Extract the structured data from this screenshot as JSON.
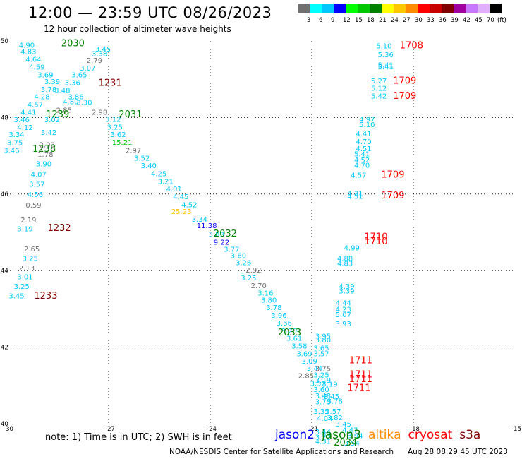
{
  "title": "12:00 — 23:59 UTC 08/26/2023",
  "subtitle": "12 hour collection of altimeter wave heights",
  "scale": {
    "labels": [
      "3",
      "6",
      "9",
      "12",
      "15",
      "18",
      "21",
      "24",
      "27",
      "30",
      "33",
      "36",
      "39",
      "42",
      "45",
      "70",
      "(ft)"
    ],
    "colors": [
      "#707070",
      "#00ffff",
      "#00c8ff",
      "#0000ff",
      "#00ff00",
      "#00c800",
      "#008000",
      "#ffff00",
      "#ffc800",
      "#ff8c00",
      "#ff0000",
      "#c80000",
      "#800000",
      "#a000a0",
      "#c878ff",
      "#e0b0ff",
      "#000000"
    ]
  },
  "note": "note:  1) Time is in UTC;  2) SWH is in feet",
  "legend": [
    {
      "name": "jason2",
      "color": "#0000ff"
    },
    {
      "name": "jason3",
      "color": "#008000"
    },
    {
      "name": "altika",
      "color": "#ff8c00"
    },
    {
      "name": "cryosat",
      "color": "#ff0000"
    },
    {
      "name": "s3a",
      "color": "#800000"
    }
  ],
  "footer_left": "NOAA/NESDIS Center for Satellite Applications and Research",
  "footer_right": "Aug 28 08:29:45 UTC 2023",
  "chart_data": {
    "type": "scatter",
    "title": "12:00 — 23:59 UTC 08/26/2023",
    "xlim": [
      -30,
      -15
    ],
    "ylim": [
      40,
      50
    ],
    "x_ticks": [
      -30,
      -27,
      -24,
      -21,
      -18,
      -15
    ],
    "y_ticks": [
      40,
      42,
      44,
      46,
      48,
      50
    ],
    "grid": true,
    "values": [
      {
        "x": -29.65,
        "y": 49.9,
        "v": "4.90",
        "c": "#00c8ff"
      },
      {
        "x": -29.6,
        "y": 49.73,
        "v": "4.83",
        "c": "#00c8ff"
      },
      {
        "x": -29.45,
        "y": 49.53,
        "v": "4.64",
        "c": "#00c8ff"
      },
      {
        "x": -29.35,
        "y": 49.33,
        "v": "4.59",
        "c": "#00c8ff"
      },
      {
        "x": -29.1,
        "y": 49.12,
        "v": "3.69",
        "c": "#00c8ff"
      },
      {
        "x": -28.9,
        "y": 48.95,
        "v": "3.39",
        "c": "#00c8ff"
      },
      {
        "x": -29.0,
        "y": 48.75,
        "v": "3.78",
        "c": "#00c8ff"
      },
      {
        "x": -29.2,
        "y": 48.55,
        "v": "4.28",
        "c": "#00c8ff"
      },
      {
        "x": -29.4,
        "y": 48.35,
        "v": "4.57",
        "c": "#00c8ff"
      },
      {
        "x": -29.6,
        "y": 48.15,
        "v": "4.41",
        "c": "#00c8ff"
      },
      {
        "x": -29.8,
        "y": 47.95,
        "v": "3.46",
        "c": "#00c8ff"
      },
      {
        "x": -29.7,
        "y": 47.75,
        "v": "4.12",
        "c": "#00c8ff"
      },
      {
        "x": -29.95,
        "y": 47.56,
        "v": "3.34",
        "c": "#00c8ff"
      },
      {
        "x": -30.0,
        "y": 47.35,
        "v": "3.75",
        "c": "#00c8ff"
      },
      {
        "x": -30.1,
        "y": 47.15,
        "v": "3.46",
        "c": "#00c8ff"
      },
      {
        "x": -27.4,
        "y": 49.8,
        "v": "3.45",
        "c": "#00c8ff"
      },
      {
        "x": -27.5,
        "y": 49.68,
        "v": "3.38",
        "c": "#00c8ff"
      },
      {
        "x": -27.65,
        "y": 49.5,
        "v": "2.79",
        "c": "#707070"
      },
      {
        "x": -27.85,
        "y": 49.3,
        "v": "3.07",
        "c": "#00c8ff"
      },
      {
        "x": -28.1,
        "y": 49.12,
        "v": "3.65",
        "c": "#00c8ff"
      },
      {
        "x": -28.3,
        "y": 48.92,
        "v": "3.36",
        "c": "#00c8ff"
      },
      {
        "x": -28.6,
        "y": 48.72,
        "v": "3.48",
        "c": "#00c8ff"
      },
      {
        "x": -28.2,
        "y": 48.55,
        "v": "3.86",
        "c": "#00c8ff"
      },
      {
        "x": -27.95,
        "y": 48.4,
        "v": "3.30",
        "c": "#00c8ff"
      },
      {
        "x": -28.35,
        "y": 48.42,
        "v": "4.80",
        "c": "#00c8ff"
      },
      {
        "x": -28.55,
        "y": 48.2,
        "v": "2.85",
        "c": "#707070"
      },
      {
        "x": -27.5,
        "y": 48.15,
        "v": "2.98",
        "c": "#707070"
      },
      {
        "x": -28.9,
        "y": 47.95,
        "v": "3.02",
        "c": "#00c8ff"
      },
      {
        "x": -29.0,
        "y": 47.62,
        "v": "3.42",
        "c": "#00c8ff"
      },
      {
        "x": -29.05,
        "y": 47.3,
        "v": "2.03",
        "c": "#707070"
      },
      {
        "x": -29.1,
        "y": 47.05,
        "v": "1.78",
        "c": "#707070"
      },
      {
        "x": -29.15,
        "y": 46.8,
        "v": "3.90",
        "c": "#00c8ff"
      },
      {
        "x": -29.3,
        "y": 46.52,
        "v": "4.07",
        "c": "#00c8ff"
      },
      {
        "x": -29.35,
        "y": 46.26,
        "v": "3.57",
        "c": "#00c8ff"
      },
      {
        "x": -29.4,
        "y": 46.0,
        "v": "4.56",
        "c": "#00c8ff"
      },
      {
        "x": -29.45,
        "y": 45.72,
        "v": "0.59",
        "c": "#707070"
      },
      {
        "x": -29.6,
        "y": 45.33,
        "v": "2.19",
        "c": "#707070"
      },
      {
        "x": -29.7,
        "y": 45.1,
        "v": "3.19",
        "c": "#00c8ff"
      },
      {
        "x": -29.5,
        "y": 44.58,
        "v": "2.65",
        "c": "#707070"
      },
      {
        "x": -29.55,
        "y": 44.33,
        "v": "3.25",
        "c": "#00c8ff"
      },
      {
        "x": -29.65,
        "y": 44.08,
        "v": "2.13",
        "c": "#707070"
      },
      {
        "x": -29.7,
        "y": 43.85,
        "v": "3.01",
        "c": "#00c8ff"
      },
      {
        "x": -29.8,
        "y": 43.6,
        "v": "3.25",
        "c": "#00c8ff"
      },
      {
        "x": -29.95,
        "y": 43.35,
        "v": "3.45",
        "c": "#00c8ff"
      },
      {
        "x": -27.1,
        "y": 47.96,
        "v": "3.12",
        "c": "#00c8ff"
      },
      {
        "x": -27.05,
        "y": 47.76,
        "v": "3.25",
        "c": "#00c8ff"
      },
      {
        "x": -26.95,
        "y": 47.56,
        "v": "3.62",
        "c": "#00c8ff"
      },
      {
        "x": -26.9,
        "y": 47.36,
        "v": "15.21",
        "c": "#00c800"
      },
      {
        "x": -26.5,
        "y": 47.15,
        "v": "2.97",
        "c": "#707070"
      },
      {
        "x": -26.25,
        "y": 46.95,
        "v": "3.52",
        "c": "#00c8ff"
      },
      {
        "x": -26.05,
        "y": 46.75,
        "v": "3.40",
        "c": "#00c8ff"
      },
      {
        "x": -25.75,
        "y": 46.54,
        "v": "4.25",
        "c": "#00c8ff"
      },
      {
        "x": -25.55,
        "y": 46.34,
        "v": "3.21",
        "c": "#00c8ff"
      },
      {
        "x": -25.3,
        "y": 46.14,
        "v": "4.01",
        "c": "#00c8ff"
      },
      {
        "x": -25.1,
        "y": 45.94,
        "v": "4.45",
        "c": "#00c8ff"
      },
      {
        "x": -24.85,
        "y": 45.73,
        "v": "4.52",
        "c": "#00c8ff"
      },
      {
        "x": -25.15,
        "y": 45.55,
        "v": "25.23",
        "c": "#ffc800"
      },
      {
        "x": -24.55,
        "y": 45.35,
        "v": "3.34",
        "c": "#00c8ff"
      },
      {
        "x": -24.4,
        "y": 45.18,
        "v": "11.38",
        "c": "#0000ff"
      },
      {
        "x": -24.05,
        "y": 44.95,
        "v": "3.83",
        "c": "#00c8ff"
      },
      {
        "x": -23.9,
        "y": 44.75,
        "v": "9.22",
        "c": "#0000ff"
      },
      {
        "x": -23.6,
        "y": 44.57,
        "v": "3.77",
        "c": "#00c8ff"
      },
      {
        "x": -23.4,
        "y": 44.4,
        "v": "3.60",
        "c": "#00c8ff"
      },
      {
        "x": -23.25,
        "y": 44.22,
        "v": "3.26",
        "c": "#00c8ff"
      },
      {
        "x": -22.95,
        "y": 44.02,
        "v": "2.92",
        "c": "#707070"
      },
      {
        "x": -23.1,
        "y": 43.82,
        "v": "3.25",
        "c": "#00c8ff"
      },
      {
        "x": -22.8,
        "y": 43.62,
        "v": "2.70",
        "c": "#707070"
      },
      {
        "x": -22.6,
        "y": 43.42,
        "v": "3.16",
        "c": "#00c8ff"
      },
      {
        "x": -22.5,
        "y": 43.24,
        "v": "3.80",
        "c": "#00c8ff"
      },
      {
        "x": -22.35,
        "y": 43.04,
        "v": "3.78",
        "c": "#00c8ff"
      },
      {
        "x": -22.2,
        "y": 42.84,
        "v": "3.96",
        "c": "#00c8ff"
      },
      {
        "x": -22.05,
        "y": 42.64,
        "v": "3.66",
        "c": "#00c8ff"
      },
      {
        "x": -21.9,
        "y": 42.44,
        "v": "3.20",
        "c": "#00c8ff"
      },
      {
        "x": -21.75,
        "y": 42.24,
        "v": "3.61",
        "c": "#00c8ff"
      },
      {
        "x": -21.6,
        "y": 42.04,
        "v": "3.58",
        "c": "#00c8ff"
      },
      {
        "x": -21.45,
        "y": 41.84,
        "v": "3.69",
        "c": "#00c8ff"
      },
      {
        "x": -21.3,
        "y": 41.64,
        "v": "3.09",
        "c": "#00c8ff"
      },
      {
        "x": -21.15,
        "y": 41.46,
        "v": "3.44",
        "c": "#00c8ff"
      },
      {
        "x": -21.4,
        "y": 41.26,
        "v": "2.85",
        "c": "#707070"
      },
      {
        "x": -21.05,
        "y": 41.06,
        "v": "3.52",
        "c": "#00c8ff"
      },
      {
        "x": -20.95,
        "y": 40.9,
        "v": "3.60",
        "c": "#00c8ff"
      },
      {
        "x": -20.7,
        "y": 41.04,
        "v": "3.19",
        "c": "#00c8ff"
      },
      {
        "x": -20.9,
        "y": 40.74,
        "v": "3.48",
        "c": "#00c8ff"
      },
      {
        "x": -20.65,
        "y": 40.72,
        "v": "3.45",
        "c": "#00c8ff"
      },
      {
        "x": -20.9,
        "y": 40.58,
        "v": "3.75",
        "c": "#00c8ff"
      },
      {
        "x": -20.55,
        "y": 40.6,
        "v": "3.78",
        "c": "#00c8ff"
      },
      {
        "x": -20.95,
        "y": 40.33,
        "v": "3.35",
        "c": "#00c8ff"
      },
      {
        "x": -20.6,
        "y": 40.33,
        "v": "3.57",
        "c": "#00c8ff"
      },
      {
        "x": -20.85,
        "y": 40.15,
        "v": "4.04",
        "c": "#00c8ff"
      },
      {
        "x": -20.55,
        "y": 40.17,
        "v": "3.82",
        "c": "#00c8ff"
      },
      {
        "x": -20.3,
        "y": 40.0,
        "v": "3.45",
        "c": "#00c8ff"
      },
      {
        "x": -20.1,
        "y": 39.84,
        "v": "4.47",
        "c": "#00c8ff"
      },
      {
        "x": -20.9,
        "y": 39.8,
        "v": "3.44",
        "c": "#00c8ff"
      },
      {
        "x": -20.9,
        "y": 39.66,
        "v": "3.72",
        "c": "#00c8ff"
      },
      {
        "x": -20.9,
        "y": 39.55,
        "v": "4.31",
        "c": "#00c8ff"
      },
      {
        "x": -19.95,
        "y": 39.7,
        "v": "3.94",
        "c": "#00c8ff"
      },
      {
        "x": -20.05,
        "y": 39.5,
        "v": "3.54",
        "c": "#00c8ff"
      },
      {
        "x": -20.9,
        "y": 42.3,
        "v": "3.95",
        "c": "#00c8ff"
      },
      {
        "x": -20.9,
        "y": 42.2,
        "v": "3.80",
        "c": "#00c8ff"
      },
      {
        "x": -20.95,
        "y": 41.98,
        "v": "3.65",
        "c": "#00c8ff"
      },
      {
        "x": -20.95,
        "y": 41.84,
        "v": "3.57",
        "c": "#00c8ff"
      },
      {
        "x": -20.9,
        "y": 41.45,
        "v": "3.75",
        "c": "#707070"
      },
      {
        "x": -20.95,
        "y": 41.28,
        "v": "3.25",
        "c": "#00c8ff"
      },
      {
        "x": -20.9,
        "y": 41.14,
        "v": "3.19",
        "c": "#00c8ff"
      },
      {
        "x": -20.3,
        "y": 43.16,
        "v": "4.44",
        "c": "#00c8ff"
      },
      {
        "x": -20.3,
        "y": 43.0,
        "v": "4.23",
        "c": "#00c8ff"
      },
      {
        "x": -20.3,
        "y": 42.86,
        "v": "5.07",
        "c": "#00c8ff"
      },
      {
        "x": -20.3,
        "y": 42.62,
        "v": "3.93",
        "c": "#00c8ff"
      },
      {
        "x": -20.2,
        "y": 43.6,
        "v": "4.39",
        "c": "#00c8ff"
      },
      {
        "x": -20.2,
        "y": 43.48,
        "v": "3.39",
        "c": "#00c8ff"
      },
      {
        "x": -20.25,
        "y": 44.33,
        "v": "4.88",
        "c": "#00c8ff"
      },
      {
        "x": -20.25,
        "y": 44.2,
        "v": "4.83",
        "c": "#00c8ff"
      },
      {
        "x": -20.05,
        "y": 44.6,
        "v": "4.99",
        "c": "#00c8ff"
      },
      {
        "x": -19.95,
        "y": 46.02,
        "v": "4.31",
        "c": "#00c8ff"
      },
      {
        "x": -19.95,
        "y": 45.95,
        "v": "4.51",
        "c": "#00c8ff"
      },
      {
        "x": -19.85,
        "y": 46.5,
        "v": "4.57",
        "c": "#00c8ff"
      },
      {
        "x": -19.75,
        "y": 47.06,
        "v": "5.41",
        "c": "#00c8ff"
      },
      {
        "x": -19.75,
        "y": 46.9,
        "v": "4.52",
        "c": "#00c8ff"
      },
      {
        "x": -19.75,
        "y": 46.76,
        "v": "4.70",
        "c": "#00c8ff"
      },
      {
        "x": -19.7,
        "y": 47.58,
        "v": "4.41",
        "c": "#00c8ff"
      },
      {
        "x": -19.7,
        "y": 47.38,
        "v": "4.70",
        "c": "#00c8ff"
      },
      {
        "x": -19.7,
        "y": 47.2,
        "v": "4.51",
        "c": "#00c8ff"
      },
      {
        "x": -19.6,
        "y": 47.96,
        "v": "4.97",
        "c": "#00c8ff"
      },
      {
        "x": -19.6,
        "y": 47.82,
        "v": "5.10",
        "c": "#00c8ff"
      },
      {
        "x": -19.1,
        "y": 49.88,
        "v": "5.10",
        "c": "#00c8ff"
      },
      {
        "x": -19.05,
        "y": 49.65,
        "v": "5.36",
        "c": "#00c8ff"
      },
      {
        "x": -19.05,
        "y": 49.38,
        "v": "5.41",
        "c": "#00c8ff"
      },
      {
        "x": -19.05,
        "y": 49.34,
        "v": "5.41",
        "c": "#00c8ff"
      },
      {
        "x": -19.25,
        "y": 48.97,
        "v": "5.27",
        "c": "#00c8ff"
      },
      {
        "x": -19.25,
        "y": 48.77,
        "v": "5.12",
        "c": "#00c8ff"
      },
      {
        "x": -19.25,
        "y": 48.57,
        "v": "5.42",
        "c": "#00c8ff"
      }
    ],
    "passes": [
      {
        "x": -28.4,
        "y": 49.95,
        "label": "2030",
        "c": "#008000"
      },
      {
        "x": -27.3,
        "y": 48.92,
        "label": "1231",
        "c": "#800000"
      },
      {
        "x": -28.85,
        "y": 48.1,
        "label": "1239",
        "c": "#008000"
      },
      {
        "x": -26.7,
        "y": 48.1,
        "label": "2031",
        "c": "#008000"
      },
      {
        "x": -29.25,
        "y": 47.2,
        "label": "1238",
        "c": "#008000"
      },
      {
        "x": -28.8,
        "y": 45.13,
        "label": "1232",
        "c": "#800000"
      },
      {
        "x": -23.9,
        "y": 44.98,
        "label": "2032",
        "c": "#008000"
      },
      {
        "x": -29.2,
        "y": 43.36,
        "label": "1233",
        "c": "#800000"
      },
      {
        "x": -22.0,
        "y": 42.4,
        "label": "2033",
        "c": "#008000"
      },
      {
        "x": -20.35,
        "y": 39.52,
        "label": "2034",
        "c": "#008000"
      },
      {
        "x": -18.4,
        "y": 49.9,
        "label": "1708",
        "c": "#ff0000"
      },
      {
        "x": -18.6,
        "y": 48.98,
        "label": "1709",
        "c": "#ff0000"
      },
      {
        "x": -18.6,
        "y": 48.58,
        "label": "1709",
        "c": "#ff0000"
      },
      {
        "x": -18.95,
        "y": 46.52,
        "label": "1709",
        "c": "#ff0000"
      },
      {
        "x": -18.95,
        "y": 45.98,
        "label": "1709",
        "c": "#ff0000"
      },
      {
        "x": -19.45,
        "y": 44.9,
        "label": "1710",
        "c": "#ff0000"
      },
      {
        "x": -19.45,
        "y": 44.78,
        "label": "1710",
        "c": "#ff0000"
      },
      {
        "x": -19.9,
        "y": 41.67,
        "label": "1711",
        "c": "#ff0000"
      },
      {
        "x": -19.9,
        "y": 41.3,
        "label": "1711",
        "c": "#ff0000"
      },
      {
        "x": -19.9,
        "y": 41.18,
        "label": "1711",
        "c": "#ff0000"
      },
      {
        "x": -19.95,
        "y": 40.95,
        "label": "1711",
        "c": "#ff0000"
      }
    ]
  }
}
